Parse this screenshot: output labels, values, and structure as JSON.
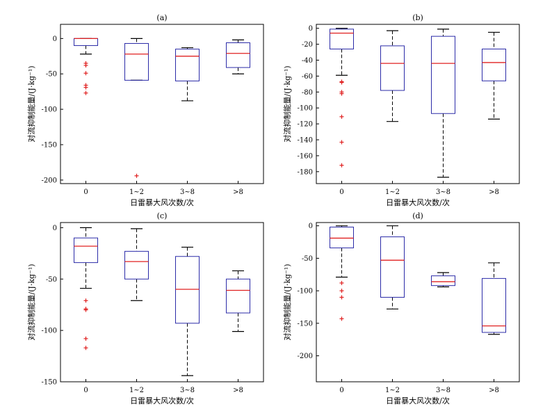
{
  "chart_data": [
    {
      "type": "box",
      "title": "(a)",
      "xlabel": "日雷暴大风次数/次",
      "ylabel": "对流抑制能量/(J·kg⁻¹)",
      "categories": [
        "0",
        "1~2",
        "3~8",
        ">8"
      ],
      "ylim": [
        -205,
        20
      ],
      "yticks": [
        0,
        -50,
        -100,
        -150,
        -200
      ],
      "boxes": [
        {
          "whisker_high": 0,
          "q3": 0,
          "median": 0,
          "q1": -10,
          "whisker_low": -22,
          "outliers": [
            -35,
            -38,
            -49,
            -66,
            -69,
            -77
          ]
        },
        {
          "whisker_high": 0,
          "q3": -7,
          "median": -22,
          "q1": -59,
          "whisker_low": -59,
          "outliers": [
            -194
          ]
        },
        {
          "whisker_high": -13,
          "q3": -15,
          "median": -25,
          "q1": -60,
          "whisker_low": -88,
          "outliers": []
        },
        {
          "whisker_high": -2,
          "q3": -6,
          "median": -21,
          "q1": -41,
          "whisker_low": -50,
          "outliers": []
        }
      ]
    },
    {
      "type": "box",
      "title": "(b)",
      "xlabel": "日雷暴大风次数/次",
      "ylabel": "对流抑制能量/(J·kg⁻¹)",
      "categories": [
        "0",
        "1~2",
        "3~8",
        ">8"
      ],
      "ylim": [
        -195,
        5
      ],
      "yticks": [
        0,
        -20,
        -40,
        -60,
        -80,
        -100,
        -120,
        -140,
        -160,
        -180
      ],
      "boxes": [
        {
          "whisker_high": 0,
          "q3": -1,
          "median": -6,
          "q1": -26,
          "whisker_low": -59,
          "outliers": [
            -67,
            -68,
            -80,
            -82,
            -111,
            -143,
            -172
          ]
        },
        {
          "whisker_high": -3,
          "q3": -22,
          "median": -44,
          "q1": -78,
          "whisker_low": -117,
          "outliers": []
        },
        {
          "whisker_high": -1,
          "q3": -10,
          "median": -44,
          "q1": -107,
          "whisker_low": -187,
          "outliers": []
        },
        {
          "whisker_high": -5,
          "q3": -26,
          "median": -43,
          "q1": -66,
          "whisker_low": -114,
          "outliers": []
        }
      ]
    },
    {
      "type": "box",
      "title": "(c)",
      "xlabel": "日雷暴大风次数/次",
      "ylabel": "对流抑制能量/(J·kg⁻¹)",
      "categories": [
        "0",
        "1~2",
        "3~8",
        ">8"
      ],
      "ylim": [
        -150,
        5
      ],
      "yticks": [
        0,
        -50,
        -100,
        -150
      ],
      "boxes": [
        {
          "whisker_high": 0,
          "q3": -10,
          "median": -18,
          "q1": -34,
          "whisker_low": -59,
          "outliers": [
            -71,
            -79,
            -80,
            -108,
            -117
          ]
        },
        {
          "whisker_high": -1,
          "q3": -23,
          "median": -33,
          "q1": -50,
          "whisker_low": -71,
          "outliers": []
        },
        {
          "whisker_high": -19,
          "q3": -28,
          "median": -60,
          "q1": -93,
          "whisker_low": -144,
          "outliers": []
        },
        {
          "whisker_high": -42,
          "q3": -50,
          "median": -61,
          "q1": -83,
          "whisker_low": -101,
          "outliers": []
        }
      ]
    },
    {
      "type": "box",
      "title": "(d)",
      "xlabel": "日雷暴大风次数/次",
      "ylabel": "对流抑制能量/(J·kg⁻¹)",
      "categories": [
        "0",
        "1~2",
        "3~8",
        ">8"
      ],
      "ylim": [
        -240,
        5
      ],
      "yticks": [
        0,
        -50,
        -100,
        -150,
        -200
      ],
      "boxes": [
        {
          "whisker_high": 0,
          "q3": -2,
          "median": -19,
          "q1": -34,
          "whisker_low": -79,
          "outliers": [
            -88,
            -100,
            -110,
            -143
          ]
        },
        {
          "whisker_high": 0,
          "q3": -17,
          "median": -53,
          "q1": -110,
          "whisker_low": -128,
          "outliers": []
        },
        {
          "whisker_high": -72,
          "q3": -77,
          "median": -86,
          "q1": -92,
          "whisker_low": -94,
          "outliers": []
        },
        {
          "whisker_high": -57,
          "q3": -81,
          "median": -154,
          "q1": -164,
          "whisker_low": -167,
          "outliers": []
        }
      ]
    }
  ]
}
